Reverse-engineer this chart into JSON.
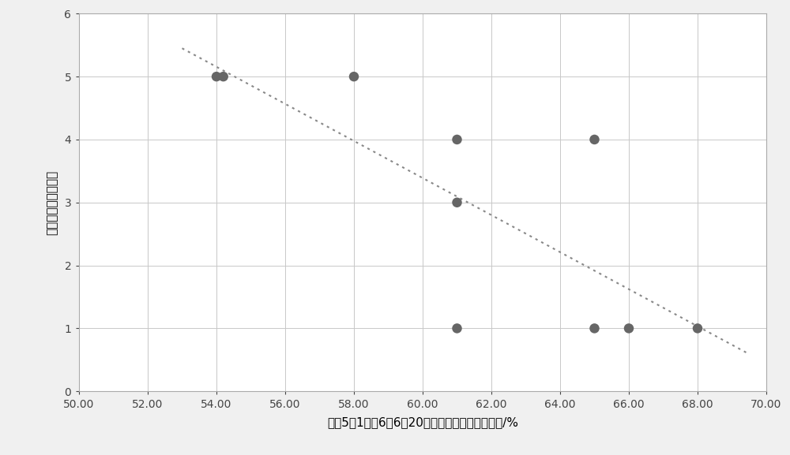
{
  "x_data": [
    54.0,
    54.2,
    58.0,
    61.0,
    61.0,
    61.0,
    65.0,
    65.0,
    66.0,
    68.0
  ],
  "y_data": [
    5,
    5,
    5,
    4,
    3,
    1,
    4,
    1,
    1,
    1
  ],
  "xlabel": "当年5月1日到6月6月20日的每日最小湿度的平均/%",
  "ylabel": "产量大小年年型等级",
  "xlim": [
    50.0,
    70.0
  ],
  "ylim": [
    0,
    6
  ],
  "xticks": [
    50.0,
    52.0,
    54.0,
    56.0,
    58.0,
    60.0,
    62.0,
    64.0,
    66.0,
    68.0,
    70.0
  ],
  "yticks": [
    0,
    1,
    2,
    3,
    4,
    5,
    6
  ],
  "marker_color": "#666666",
  "marker_size": 9,
  "line_color": "#888888",
  "background_color": "#f0f0f0",
  "plot_bg_color": "#ffffff",
  "grid_color": "#c8c8c8",
  "line_x_start": 53.0,
  "line_x_end": 69.5
}
